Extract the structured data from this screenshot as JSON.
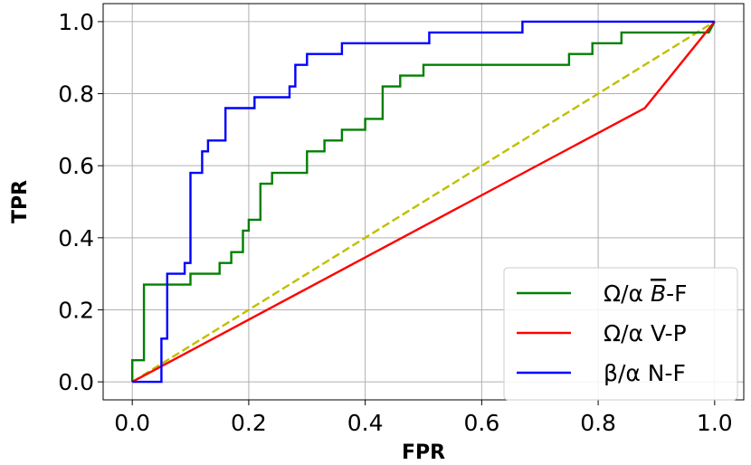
{
  "chart_data": {
    "type": "line",
    "xlabel": "FPR",
    "ylabel": "TPR",
    "xlim": [
      -0.05,
      1.05
    ],
    "ylim": [
      -0.05,
      1.05
    ],
    "grid": true,
    "legend_position": "bottom-right",
    "x_ticks": [
      "0.0",
      "0.2",
      "0.4",
      "0.6",
      "0.8",
      "1.0"
    ],
    "y_ticks": [
      "0.0",
      "0.2",
      "0.4",
      "0.6",
      "0.8",
      "1.0"
    ],
    "series": [
      {
        "name_parts": [
          "Ω/α ",
          "B",
          "-F"
        ],
        "name_overline_part": 1,
        "color": "#008000",
        "style": "solid",
        "points": [
          [
            0,
            0
          ],
          [
            0,
            0.06
          ],
          [
            0.02,
            0.06
          ],
          [
            0.02,
            0.27
          ],
          [
            0.1,
            0.27
          ],
          [
            0.1,
            0.3
          ],
          [
            0.15,
            0.3
          ],
          [
            0.15,
            0.33
          ],
          [
            0.17,
            0.33
          ],
          [
            0.17,
            0.36
          ],
          [
            0.19,
            0.36
          ],
          [
            0.19,
            0.42
          ],
          [
            0.2,
            0.42
          ],
          [
            0.2,
            0.45
          ],
          [
            0.22,
            0.45
          ],
          [
            0.22,
            0.55
          ],
          [
            0.24,
            0.55
          ],
          [
            0.24,
            0.58
          ],
          [
            0.3,
            0.58
          ],
          [
            0.3,
            0.64
          ],
          [
            0.33,
            0.64
          ],
          [
            0.33,
            0.67
          ],
          [
            0.36,
            0.67
          ],
          [
            0.36,
            0.7
          ],
          [
            0.4,
            0.7
          ],
          [
            0.4,
            0.73
          ],
          [
            0.43,
            0.73
          ],
          [
            0.43,
            0.82
          ],
          [
            0.46,
            0.82
          ],
          [
            0.46,
            0.85
          ],
          [
            0.5,
            0.85
          ],
          [
            0.5,
            0.88
          ],
          [
            0.75,
            0.88
          ],
          [
            0.75,
            0.91
          ],
          [
            0.79,
            0.91
          ],
          [
            0.79,
            0.94
          ],
          [
            0.84,
            0.94
          ],
          [
            0.84,
            0.97
          ],
          [
            0.99,
            0.97
          ],
          [
            1,
            1
          ]
        ]
      },
      {
        "name_parts": [
          "Ω/α V-P"
        ],
        "color": "#ff0000",
        "style": "solid",
        "points": [
          [
            0,
            0
          ],
          [
            0.88,
            0.76
          ],
          [
            1,
            1
          ]
        ]
      },
      {
        "name_parts": [
          "β/α N-F"
        ],
        "color": "#0000ff",
        "style": "solid",
        "points": [
          [
            0,
            0
          ],
          [
            0.05,
            0
          ],
          [
            0.05,
            0.12
          ],
          [
            0.06,
            0.12
          ],
          [
            0.06,
            0.3
          ],
          [
            0.09,
            0.3
          ],
          [
            0.09,
            0.33
          ],
          [
            0.1,
            0.33
          ],
          [
            0.1,
            0.58
          ],
          [
            0.12,
            0.58
          ],
          [
            0.12,
            0.64
          ],
          [
            0.13,
            0.64
          ],
          [
            0.13,
            0.67
          ],
          [
            0.16,
            0.67
          ],
          [
            0.16,
            0.76
          ],
          [
            0.21,
            0.76
          ],
          [
            0.21,
            0.79
          ],
          [
            0.27,
            0.79
          ],
          [
            0.27,
            0.82
          ],
          [
            0.28,
            0.82
          ],
          [
            0.28,
            0.88
          ],
          [
            0.3,
            0.88
          ],
          [
            0.3,
            0.91
          ],
          [
            0.36,
            0.91
          ],
          [
            0.36,
            0.94
          ],
          [
            0.51,
            0.94
          ],
          [
            0.51,
            0.97
          ],
          [
            0.67,
            0.97
          ],
          [
            0.67,
            1
          ],
          [
            1,
            1
          ]
        ]
      },
      {
        "name_parts": [],
        "color": "#bfbf00",
        "style": "dashed",
        "points": [
          [
            0,
            0
          ],
          [
            1,
            1
          ]
        ]
      }
    ]
  }
}
